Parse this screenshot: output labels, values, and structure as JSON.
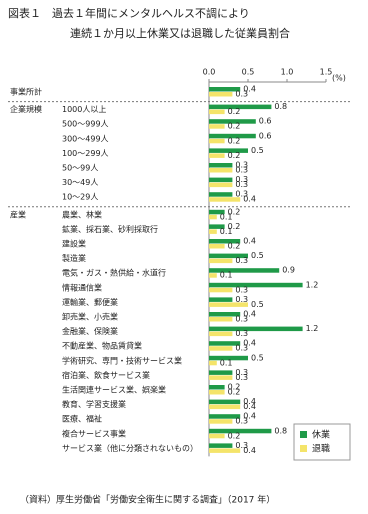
{
  "chart_data": {
    "type": "hbar",
    "title": [
      "図表１　過去１年間にメンタルヘルス不調により",
      "連続１か月以上休業又は退職した従業員割合"
    ],
    "unit": "(%)",
    "categories": [
      null,
      "1000人以上",
      "500～999人",
      "300～499人",
      "100～299人",
      "50～99人",
      "30～49人",
      "10～29人",
      "農業、林業",
      "鉱業、採石業、砂利採取行",
      "建設業",
      "製造業",
      "電気・ガス・熱供給・水道行",
      "情報通信業",
      "運輸業、郵便業",
      "卸売業、小売業",
      "金融業、保険業",
      "不動産業、物品賃貸業",
      "学術研究、専門・技術サービス業",
      "宿泊業、飲食サービス業",
      "生活関連サービス業、娯楽業",
      "教育、学習支援業",
      "医療、福祉",
      "複合サービス事業",
      "サービス業（他に分類されないもの）"
    ],
    "group_labels": [
      {
        "name": "事業所計",
        "at": 0
      },
      {
        "name": "企業規模",
        "at": 1
      },
      {
        "name": "産業",
        "at": 8
      }
    ],
    "series": [
      {
        "name": "休業",
        "color": "#1f9a48",
        "values": [
          0.4,
          0.8,
          0.6,
          0.6,
          0.5,
          0.3,
          0.3,
          0.3,
          0.2,
          0.2,
          0.4,
          0.5,
          0.9,
          1.2,
          0.3,
          0.4,
          1.2,
          0.4,
          0.5,
          0.3,
          0.2,
          0.4,
          0.4,
          0.8,
          0.3
        ]
      },
      {
        "name": "退職",
        "color": "#f4e46a",
        "values": [
          0.3,
          0.2,
          0.2,
          0.2,
          0.2,
          0.3,
          0.3,
          0.4,
          0.1,
          0.1,
          0.2,
          0.3,
          0.1,
          0.3,
          0.5,
          0.3,
          0.3,
          0.3,
          0.1,
          0.3,
          0.2,
          0.4,
          0.3,
          0.2,
          0.4
        ]
      }
    ],
    "xlim": [
      0,
      1.5
    ],
    "xticks": [
      {
        "value": 0,
        "label": "0.0"
      },
      {
        "value": 0.5,
        "label": "0.5"
      },
      {
        "value": 1,
        "label": "1.0"
      },
      {
        "value": 1.5,
        "label": "1.5"
      }
    ],
    "legend": "bottom-right",
    "source": "（資料）厚生労働省「労働安全衛生に関する調査」（2017 年）"
  }
}
